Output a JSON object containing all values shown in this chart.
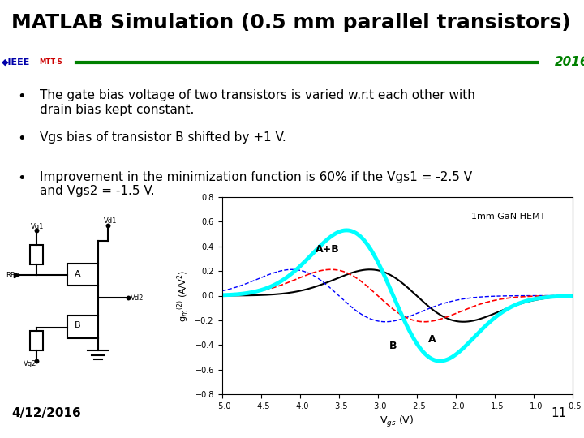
{
  "title": "MATLAB Simulation (0.5 mm parallel transistors)",
  "year": "2016",
  "date": "4/12/2016",
  "page_num": "11",
  "bullets": [
    "The gate bias voltage of two transistors is varied w.r.t each other with\ndrain bias kept constant.",
    "Vgs bias of transistor B shifted by +1 V.",
    "Improvement in the minimization function is 60% if the Vgs1 = -2.5 V\nand Vgs2 = -1.5 V."
  ],
  "plot_title": "1mm GaN HEMT",
  "xlabel": "V$_{gs}$ (V)",
  "ylabel": "g$_m$$^{(2)}$ (A/V$^2$)",
  "xlim": [
    -5,
    -0.5
  ],
  "ylim": [
    -0.8,
    0.8
  ],
  "xticks": [
    -5,
    -4.5,
    -4,
    -3.5,
    -3,
    -2.5,
    -2,
    -1.5,
    -1,
    -0.5
  ],
  "yticks": [
    -0.8,
    -0.6,
    -0.4,
    -0.2,
    0,
    0.2,
    0.4,
    0.6,
    0.8
  ],
  "background_color": "#ffffff",
  "title_color": "#000000",
  "green_line_color": "#008000",
  "year_color": "#008000"
}
